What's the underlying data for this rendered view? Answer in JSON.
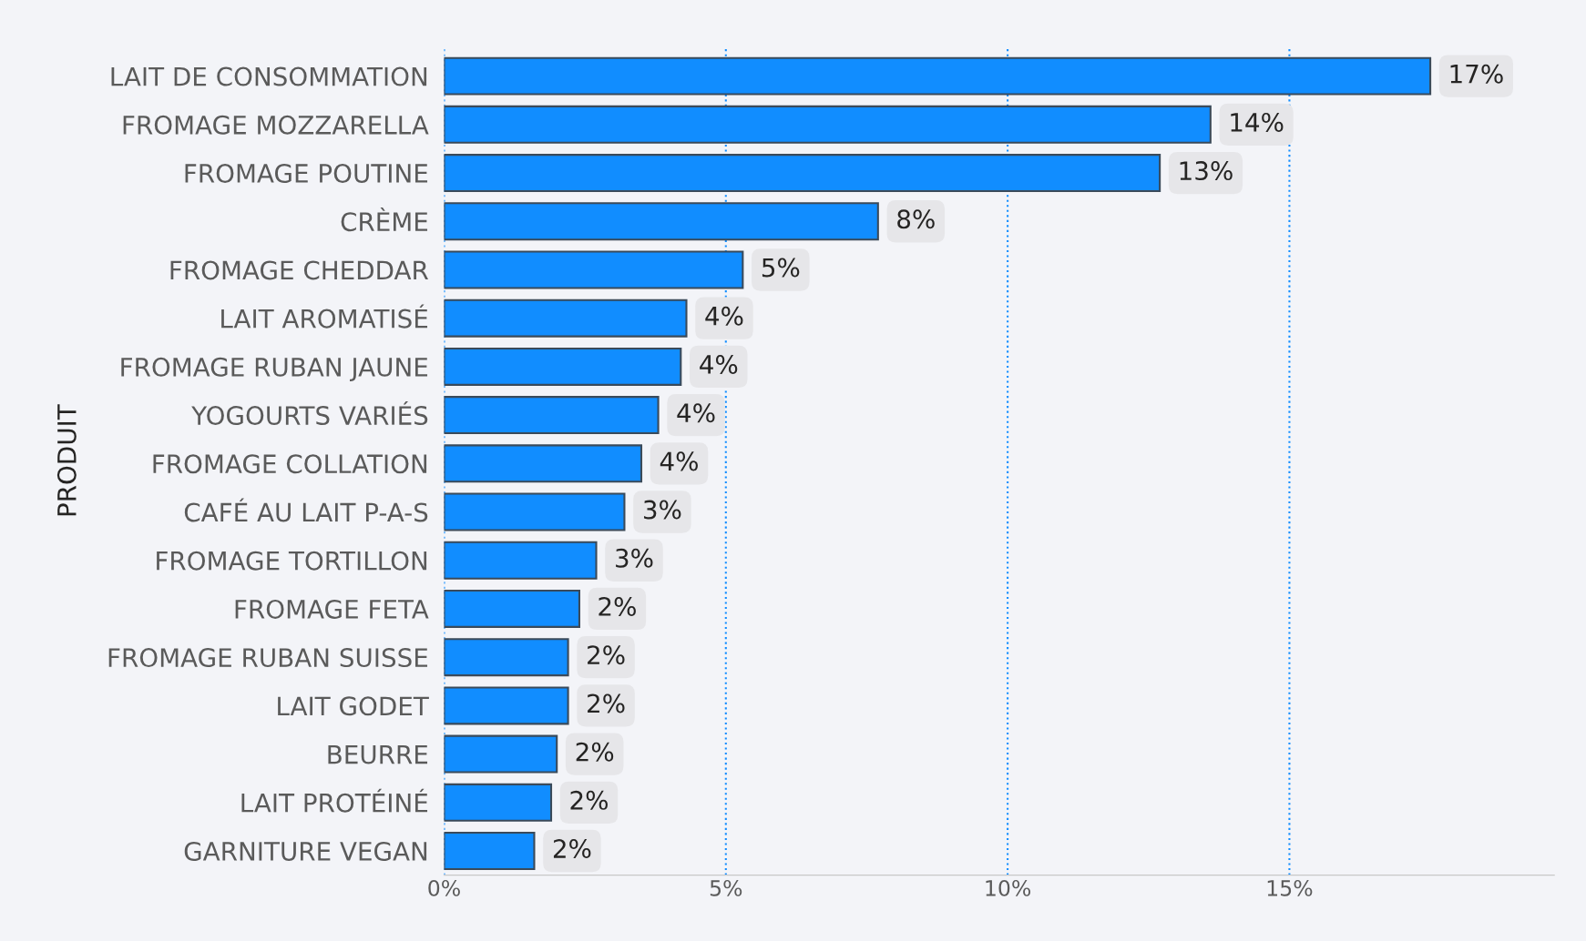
{
  "chart_data": {
    "type": "bar",
    "orientation": "horizontal",
    "ylabel": "PRODUIT",
    "categories": [
      "LAIT DE CONSOMMATION",
      "FROMAGE MOZZARELLA",
      "FROMAGE POUTINE",
      "CRÈME",
      "FROMAGE CHEDDAR",
      "LAIT AROMATISÉ",
      "FROMAGE RUBAN JAUNE",
      "YOGOURTS VARIÉS",
      "FROMAGE COLLATION",
      "CAFÉ AU LAIT P-A-S",
      "FROMAGE TORTILLON",
      "FROMAGE FETA",
      "FROMAGE RUBAN SUISSE",
      "LAIT GODET",
      "BEURRE",
      "LAIT PROTÉINÉ",
      "GARNITURE VEGAN"
    ],
    "values": [
      17.5,
      13.6,
      12.7,
      7.7,
      5.3,
      4.3,
      4.2,
      3.8,
      3.5,
      3.2,
      2.7,
      2.4,
      2.2,
      2.2,
      2.0,
      1.9,
      1.6
    ],
    "value_labels": [
      "17%",
      "14%",
      "13%",
      "8%",
      "5%",
      "4%",
      "4%",
      "4%",
      "4%",
      "3%",
      "3%",
      "2%",
      "2%",
      "2%",
      "2%",
      "2%",
      "2%"
    ],
    "color": "#118dff",
    "xlim": [
      0,
      19.7
    ],
    "xticks": [
      {
        "value": 0,
        "label": "0%"
      },
      {
        "value": 5,
        "label": "5%"
      },
      {
        "value": 10,
        "label": "10%"
      },
      {
        "value": 15,
        "label": "15%"
      }
    ],
    "grid": "x"
  }
}
